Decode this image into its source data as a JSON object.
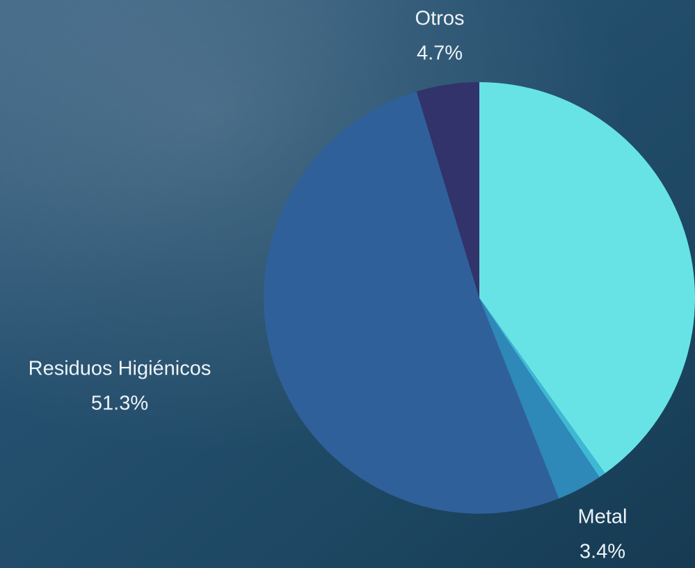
{
  "chart_data": {
    "type": "pie",
    "categories": [
      null,
      null,
      "Metal",
      "Residuos Higiénicos",
      "Otros"
    ],
    "values": [
      40.1,
      0.5,
      3.4,
      51.3,
      4.7
    ],
    "value_labels": [
      null,
      null,
      "3.4%",
      "51.3%",
      "4.7%"
    ],
    "colors": [
      "#67e3e6",
      "#3fb8d6",
      "#2e88b8",
      "#30609a",
      "#32336b"
    ]
  }
}
